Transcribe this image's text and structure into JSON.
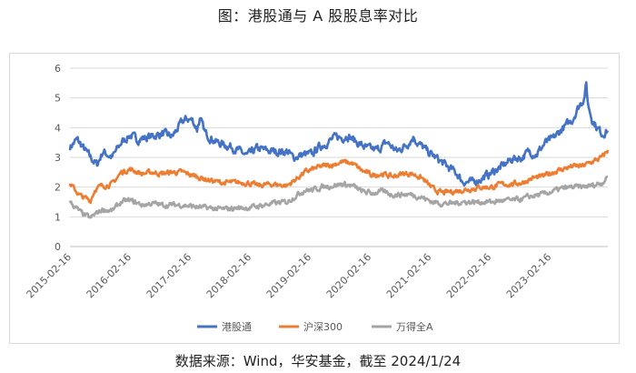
{
  "title": "图：港股通与 A 股股息率对比",
  "source": "数据来源：Wind，华安基金，截至 2024/1/24",
  "chart_data": {
    "type": "line",
    "y_ticks": [
      0,
      1,
      2,
      3,
      4,
      5,
      6
    ],
    "ylim": [
      0,
      6
    ],
    "x_range": [
      "2015-02-05",
      "2024-01-24"
    ],
    "x_ticks": [
      "2015-02-16",
      "2016-02-16",
      "2017-02-16",
      "2018-02-16",
      "2019-02-16",
      "2020-02-16",
      "2021-02-16",
      "2022-02-16",
      "2023-02-16"
    ],
    "grid": "horizontal",
    "legend_position": "bottom",
    "series": [
      {
        "name": "港股通",
        "color": "#4472C4",
        "points": [
          [
            "2015-02-05",
            3.35
          ],
          [
            "2015-03-20",
            3.6
          ],
          [
            "2015-06-10",
            3.0
          ],
          [
            "2015-07-20",
            2.75
          ],
          [
            "2015-08-25",
            3.2
          ],
          [
            "2015-10-20",
            3.0
          ],
          [
            "2015-12-15",
            3.5
          ],
          [
            "2016-02-05",
            3.75
          ],
          [
            "2016-03-20",
            3.6
          ],
          [
            "2016-06-10",
            3.7
          ],
          [
            "2016-08-20",
            3.8
          ],
          [
            "2016-10-20",
            3.7
          ],
          [
            "2016-12-20",
            4.2
          ],
          [
            "2017-01-20",
            4.3
          ],
          [
            "2017-02-20",
            4.25
          ],
          [
            "2017-03-20",
            3.95
          ],
          [
            "2017-04-05",
            4.3
          ],
          [
            "2017-05-10",
            3.8
          ],
          [
            "2017-07-20",
            3.5
          ],
          [
            "2017-10-20",
            3.35
          ],
          [
            "2018-01-20",
            3.05
          ],
          [
            "2018-03-20",
            3.3
          ],
          [
            "2018-06-20",
            3.2
          ],
          [
            "2018-09-20",
            3.2
          ],
          [
            "2018-10-25",
            3.0
          ],
          [
            "2019-01-05",
            3.1
          ],
          [
            "2019-02-20",
            3.1
          ],
          [
            "2019-03-20",
            3.3
          ],
          [
            "2019-05-20",
            3.5
          ],
          [
            "2019-07-20",
            3.7
          ],
          [
            "2019-08-20",
            3.65
          ],
          [
            "2019-09-20",
            3.75
          ],
          [
            "2019-11-20",
            3.5
          ],
          [
            "2020-01-20",
            3.3
          ],
          [
            "2020-03-20",
            3.25
          ],
          [
            "2020-05-20",
            3.5
          ],
          [
            "2020-07-20",
            3.2
          ],
          [
            "2020-09-20",
            3.45
          ],
          [
            "2020-10-30",
            3.7
          ],
          [
            "2020-11-20",
            3.5
          ],
          [
            "2021-01-20",
            3.2
          ],
          [
            "2021-03-10",
            3.0
          ],
          [
            "2021-05-20",
            2.7
          ],
          [
            "2021-07-20",
            2.45
          ],
          [
            "2021-08-20",
            2.2
          ],
          [
            "2021-10-20",
            2.15
          ],
          [
            "2021-12-20",
            2.3
          ],
          [
            "2022-02-20",
            2.5
          ],
          [
            "2022-04-20",
            2.7
          ],
          [
            "2022-06-20",
            2.95
          ],
          [
            "2022-08-20",
            3.0
          ],
          [
            "2022-10-01",
            3.2
          ],
          [
            "2022-11-15",
            3.1
          ],
          [
            "2023-01-10",
            3.5
          ],
          [
            "2023-02-20",
            3.6
          ],
          [
            "2023-04-20",
            3.95
          ],
          [
            "2023-06-20",
            4.25
          ],
          [
            "2023-07-20",
            4.6
          ],
          [
            "2023-08-10",
            4.8
          ],
          [
            "2023-09-01",
            5.0
          ],
          [
            "2023-09-15",
            5.45
          ],
          [
            "2023-09-25",
            4.8
          ],
          [
            "2023-10-20",
            4.3
          ],
          [
            "2023-11-20",
            4.0
          ],
          [
            "2023-12-20",
            3.8
          ],
          [
            "2024-01-24",
            3.9
          ]
        ]
      },
      {
        "name": "沪深300",
        "color": "#ED7D31",
        "points": [
          [
            "2015-02-05",
            2.1
          ],
          [
            "2015-04-10",
            1.7
          ],
          [
            "2015-06-10",
            1.55
          ],
          [
            "2015-07-10",
            1.95
          ],
          [
            "2015-08-25",
            2.05
          ],
          [
            "2015-10-20",
            2.1
          ],
          [
            "2015-12-15",
            2.5
          ],
          [
            "2016-02-05",
            2.6
          ],
          [
            "2016-04-20",
            2.45
          ],
          [
            "2016-06-20",
            2.5
          ],
          [
            "2016-08-20",
            2.45
          ],
          [
            "2016-10-20",
            2.5
          ],
          [
            "2016-12-20",
            2.5
          ],
          [
            "2017-02-20",
            2.4
          ],
          [
            "2017-03-20",
            2.35
          ],
          [
            "2017-05-20",
            2.25
          ],
          [
            "2017-08-20",
            2.15
          ],
          [
            "2017-11-20",
            2.15
          ],
          [
            "2018-01-20",
            2.15
          ],
          [
            "2018-03-20",
            2.05
          ],
          [
            "2018-06-20",
            2.1
          ],
          [
            "2018-09-20",
            2.05
          ],
          [
            "2018-11-20",
            2.3
          ],
          [
            "2019-01-05",
            2.5
          ],
          [
            "2019-02-20",
            2.6
          ],
          [
            "2019-04-20",
            2.7
          ],
          [
            "2019-06-20",
            2.75
          ],
          [
            "2019-08-20",
            2.85
          ],
          [
            "2019-10-20",
            2.8
          ],
          [
            "2019-12-20",
            2.55
          ],
          [
            "2020-02-20",
            2.4
          ],
          [
            "2020-04-20",
            2.45
          ],
          [
            "2020-06-20",
            2.35
          ],
          [
            "2020-08-20",
            2.45
          ],
          [
            "2020-10-20",
            2.45
          ],
          [
            "2020-12-20",
            2.3
          ],
          [
            "2021-02-20",
            1.95
          ],
          [
            "2021-04-20",
            1.8
          ],
          [
            "2021-06-20",
            1.85
          ],
          [
            "2021-08-20",
            1.9
          ],
          [
            "2021-10-20",
            1.95
          ],
          [
            "2021-12-20",
            2.0
          ],
          [
            "2022-02-20",
            2.0
          ],
          [
            "2022-04-20",
            2.1
          ],
          [
            "2022-06-20",
            2.1
          ],
          [
            "2022-08-20",
            2.15
          ],
          [
            "2022-10-20",
            2.3
          ],
          [
            "2022-12-20",
            2.35
          ],
          [
            "2023-02-20",
            2.5
          ],
          [
            "2023-04-20",
            2.6
          ],
          [
            "2023-06-20",
            2.7
          ],
          [
            "2023-08-20",
            2.7
          ],
          [
            "2023-10-20",
            2.85
          ],
          [
            "2023-12-20",
            3.0
          ],
          [
            "2024-01-24",
            3.25
          ]
        ]
      },
      {
        "name": "万得全A",
        "color": "#A5A5A5",
        "points": [
          [
            "2015-02-05",
            1.5
          ],
          [
            "2015-04-10",
            1.15
          ],
          [
            "2015-06-10",
            0.95
          ],
          [
            "2015-07-10",
            1.1
          ],
          [
            "2015-08-25",
            1.25
          ],
          [
            "2015-10-20",
            1.2
          ],
          [
            "2015-12-15",
            1.5
          ],
          [
            "2016-02-05",
            1.55
          ],
          [
            "2016-04-20",
            1.4
          ],
          [
            "2016-06-20",
            1.45
          ],
          [
            "2016-08-20",
            1.4
          ],
          [
            "2016-10-20",
            1.4
          ],
          [
            "2016-12-20",
            1.4
          ],
          [
            "2017-02-20",
            1.35
          ],
          [
            "2017-05-20",
            1.3
          ],
          [
            "2017-08-20",
            1.25
          ],
          [
            "2017-11-20",
            1.3
          ],
          [
            "2018-01-20",
            1.3
          ],
          [
            "2018-03-20",
            1.35
          ],
          [
            "2018-06-20",
            1.45
          ],
          [
            "2018-09-20",
            1.5
          ],
          [
            "2018-11-20",
            1.75
          ],
          [
            "2019-01-05",
            1.9
          ],
          [
            "2019-02-20",
            1.9
          ],
          [
            "2019-04-20",
            2.0
          ],
          [
            "2019-06-20",
            2.05
          ],
          [
            "2019-08-20",
            2.1
          ],
          [
            "2019-10-20",
            2.05
          ],
          [
            "2019-12-20",
            1.85
          ],
          [
            "2020-02-20",
            1.8
          ],
          [
            "2020-04-20",
            1.85
          ],
          [
            "2020-06-20",
            1.75
          ],
          [
            "2020-08-20",
            1.75
          ],
          [
            "2020-10-20",
            1.75
          ],
          [
            "2020-12-20",
            1.65
          ],
          [
            "2021-02-20",
            1.5
          ],
          [
            "2021-04-20",
            1.45
          ],
          [
            "2021-06-20",
            1.45
          ],
          [
            "2021-08-20",
            1.5
          ],
          [
            "2021-10-20",
            1.5
          ],
          [
            "2021-12-20",
            1.5
          ],
          [
            "2022-02-20",
            1.5
          ],
          [
            "2022-04-20",
            1.55
          ],
          [
            "2022-06-20",
            1.55
          ],
          [
            "2022-08-20",
            1.6
          ],
          [
            "2022-10-20",
            1.7
          ],
          [
            "2022-12-20",
            1.75
          ],
          [
            "2023-02-20",
            1.85
          ],
          [
            "2023-04-20",
            1.95
          ],
          [
            "2023-06-20",
            2.0
          ],
          [
            "2023-08-20",
            2.0
          ],
          [
            "2023-10-20",
            2.05
          ],
          [
            "2023-12-20",
            2.15
          ],
          [
            "2024-01-24",
            2.35
          ]
        ]
      }
    ]
  }
}
